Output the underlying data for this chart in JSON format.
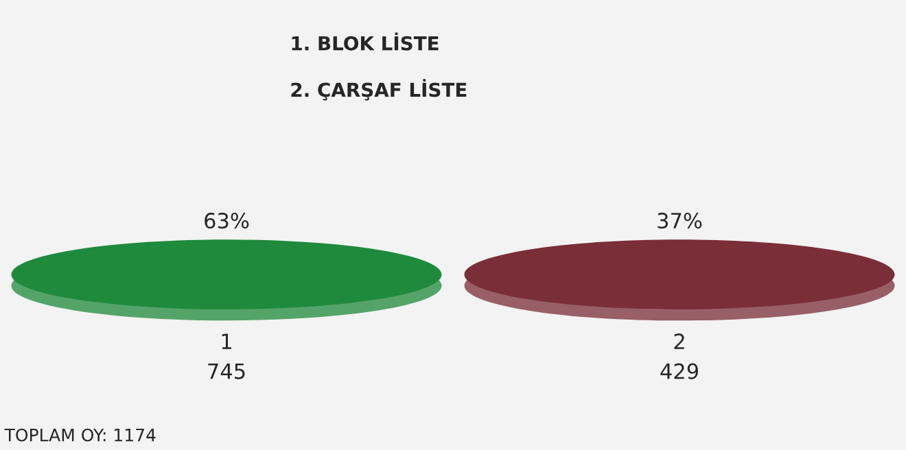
{
  "chart_data": {
    "type": "other",
    "categories": [
      "1",
      "2"
    ],
    "values": [
      745,
      429
    ],
    "colors": [
      "#1f8a3c",
      "#7a2e38"
    ],
    "data_labels": true,
    "annotations": [
      "1. BLOK LİSTE",
      "2. ÇARŞAF LİSTE",
      {
        "text": "63%",
        "x": "1"
      },
      {
        "text": "37%",
        "x": "2"
      },
      "TOPLAM OY: 1174"
    ]
  }
}
